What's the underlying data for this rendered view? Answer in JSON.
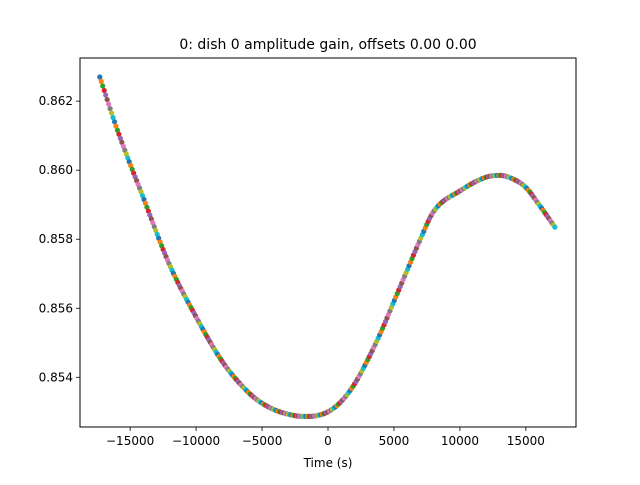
{
  "chart_data": {
    "type": "scatter",
    "title": "0: dish 0 amplitude gain, offsets 0.00 0.00",
    "xlabel": "Time (s)",
    "ylabel": "",
    "xlim": [
      -18800,
      18800
    ],
    "ylim": [
      0.85256,
      0.86325
    ],
    "xticks": [
      -15000,
      -10000,
      -5000,
      0,
      5000,
      10000,
      15000
    ],
    "xtick_labels": [
      "−15000",
      "−10000",
      "−5000",
      "0",
      "5000",
      "10000",
      "15000"
    ],
    "yticks": [
      0.854,
      0.856,
      0.858,
      0.86,
      0.862
    ],
    "ytick_labels": [
      "0.854",
      "0.856",
      "0.858",
      "0.860",
      "0.862"
    ],
    "grid": false,
    "legend": "none",
    "marker_colors": [
      "#1f77b4",
      "#ff7f0e",
      "#2ca02c",
      "#d62728",
      "#9467bd",
      "#8c564b",
      "#e377c2",
      "#7f7f7f",
      "#bcbd22",
      "#17becf"
    ],
    "x_range": [
      -17300,
      17200
    ],
    "curve_knots": {
      "x": [
        -17300,
        -16000,
        -14000,
        -12000,
        -10000,
        -8000,
        -6000,
        -5000,
        -4000,
        -3000,
        -2000,
        -1000,
        0,
        1000,
        2000,
        3000,
        4000,
        5000,
        6000,
        7000,
        8000,
        10000,
        12000,
        13000,
        14000,
        15000,
        16000,
        17200
      ],
      "y": [
        0.8627,
        0.8612,
        0.8592,
        0.85725,
        0.85575,
        0.85445,
        0.85355,
        0.85325,
        0.85305,
        0.85293,
        0.85287,
        0.85288,
        0.853,
        0.8533,
        0.8538,
        0.8545,
        0.8553,
        0.8562,
        0.8571,
        0.858,
        0.8588,
        0.8594,
        0.8598,
        0.85985,
        0.85975,
        0.8595,
        0.859,
        0.85835
      ]
    },
    "n_points": 310
  }
}
